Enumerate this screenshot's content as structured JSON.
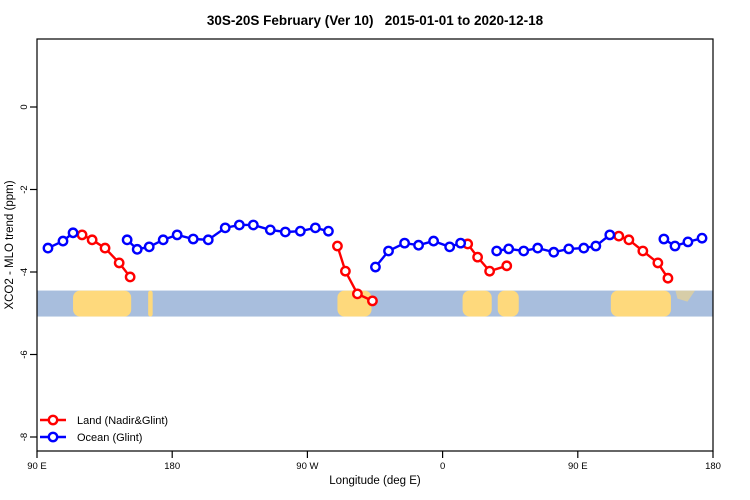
{
  "title": "30S-20S February (Ver 10)   2015-01-01 to 2020-12-18",
  "chart_data": {
    "type": "line",
    "title": "30S-20S February (Ver 10)   2015-01-01 to 2020-12-18",
    "xlabel": "Longitude (deg E)",
    "ylabel": "XCO2 - MLO trend (ppm)",
    "x_axis": {
      "note": "longitude wraps eastward from 90E; degrees measured from 90E",
      "span_deg": 450,
      "ticks_deg": [
        0,
        90,
        180,
        270,
        360,
        450
      ],
      "tick_labels": [
        "90 E",
        "180",
        "90 W",
        "0",
        "90 E",
        "180"
      ]
    },
    "y_axis": {
      "ticks": [
        0,
        -2,
        -4,
        -6,
        -8
      ],
      "tick_labels": [
        "0",
        "-2",
        "-4",
        "-6",
        "-8"
      ],
      "range_top": 1.8,
      "range_bottom": -8.35,
      "grid": false
    },
    "map_band": {
      "description": "latitude-strip map 30S-20S: ocean blue with land blobs",
      "value_top": -4.45,
      "value_bottom": -5.08,
      "ocean_color": "#a8bedd",
      "land_color": "#fed97c",
      "land_blocks_deg": [
        [
          24,
          62.7
        ],
        [
          74,
          77
        ],
        [
          200,
          222.7
        ],
        [
          283.3,
          302.7
        ],
        [
          306.7,
          320.7
        ],
        [
          382,
          422
        ]
      ],
      "faint_block_deg": [
        425,
        438
      ]
    },
    "series": [
      {
        "name": "Land (Nadir&Glint)",
        "color": "#ff0000",
        "segments": [
          [
            [
              30,
              -3.1
            ],
            [
              36.7,
              -3.22
            ],
            [
              45.3,
              -3.42
            ],
            [
              54.7,
              -3.78
            ],
            [
              62,
              -4.12
            ]
          ],
          [
            [
              200,
              -3.37
            ],
            [
              205.3,
              -3.98
            ],
            [
              213.3,
              -4.53
            ],
            [
              223.3,
              -4.7
            ]
          ],
          [
            [
              286.7,
              -3.32
            ],
            [
              293.3,
              -3.64
            ],
            [
              301.3,
              -3.98
            ],
            [
              312.7,
              -3.85
            ]
          ],
          [
            [
              387.3,
              -3.13
            ],
            [
              394,
              -3.22
            ],
            [
              403.3,
              -3.49
            ],
            [
              413.3,
              -3.78
            ],
            [
              420,
              -4.15
            ]
          ]
        ]
      },
      {
        "name": "Ocean (Glint)",
        "color": "#0000ff",
        "segments": [
          [
            [
              7.3,
              -3.42
            ],
            [
              17.3,
              -3.25
            ],
            [
              24,
              -3.05
            ]
          ],
          [
            [
              60,
              -3.22
            ],
            [
              66.7,
              -3.45
            ],
            [
              74.7,
              -3.39
            ],
            [
              84,
              -3.22
            ],
            [
              93.3,
              -3.1
            ],
            [
              104,
              -3.2
            ],
            [
              114,
              -3.22
            ],
            [
              125.3,
              -2.93
            ],
            [
              134.7,
              -2.86
            ],
            [
              144,
              -2.86
            ],
            [
              155.3,
              -2.98
            ],
            [
              165.3,
              -3.03
            ],
            [
              175.3,
              -3.01
            ],
            [
              185.3,
              -2.93
            ],
            [
              194,
              -3.01
            ]
          ],
          [
            [
              225.3,
              -3.88
            ],
            [
              234,
              -3.49
            ],
            [
              244.7,
              -3.3
            ],
            [
              254,
              -3.35
            ],
            [
              264,
              -3.25
            ],
            [
              274.7,
              -3.39
            ],
            [
              282,
              -3.3
            ]
          ],
          [
            [
              306,
              -3.49
            ],
            [
              314,
              -3.44
            ],
            [
              324,
              -3.49
            ],
            [
              333.3,
              -3.42
            ],
            [
              344,
              -3.52
            ],
            [
              354,
              -3.44
            ],
            [
              364,
              -3.42
            ],
            [
              372,
              -3.37
            ],
            [
              381.3,
              -3.1
            ]
          ],
          [
            [
              417.3,
              -3.2
            ],
            [
              424.7,
              -3.37
            ],
            [
              433.3,
              -3.27
            ],
            [
              442.7,
              -3.18
            ]
          ]
        ]
      }
    ],
    "legend": {
      "position": "bottom-left",
      "entries": [
        {
          "label": "Land (Nadir&Glint)",
          "color": "#ff0000"
        },
        {
          "label": "Ocean (Glint)",
          "color": "#0000ff"
        }
      ]
    }
  }
}
